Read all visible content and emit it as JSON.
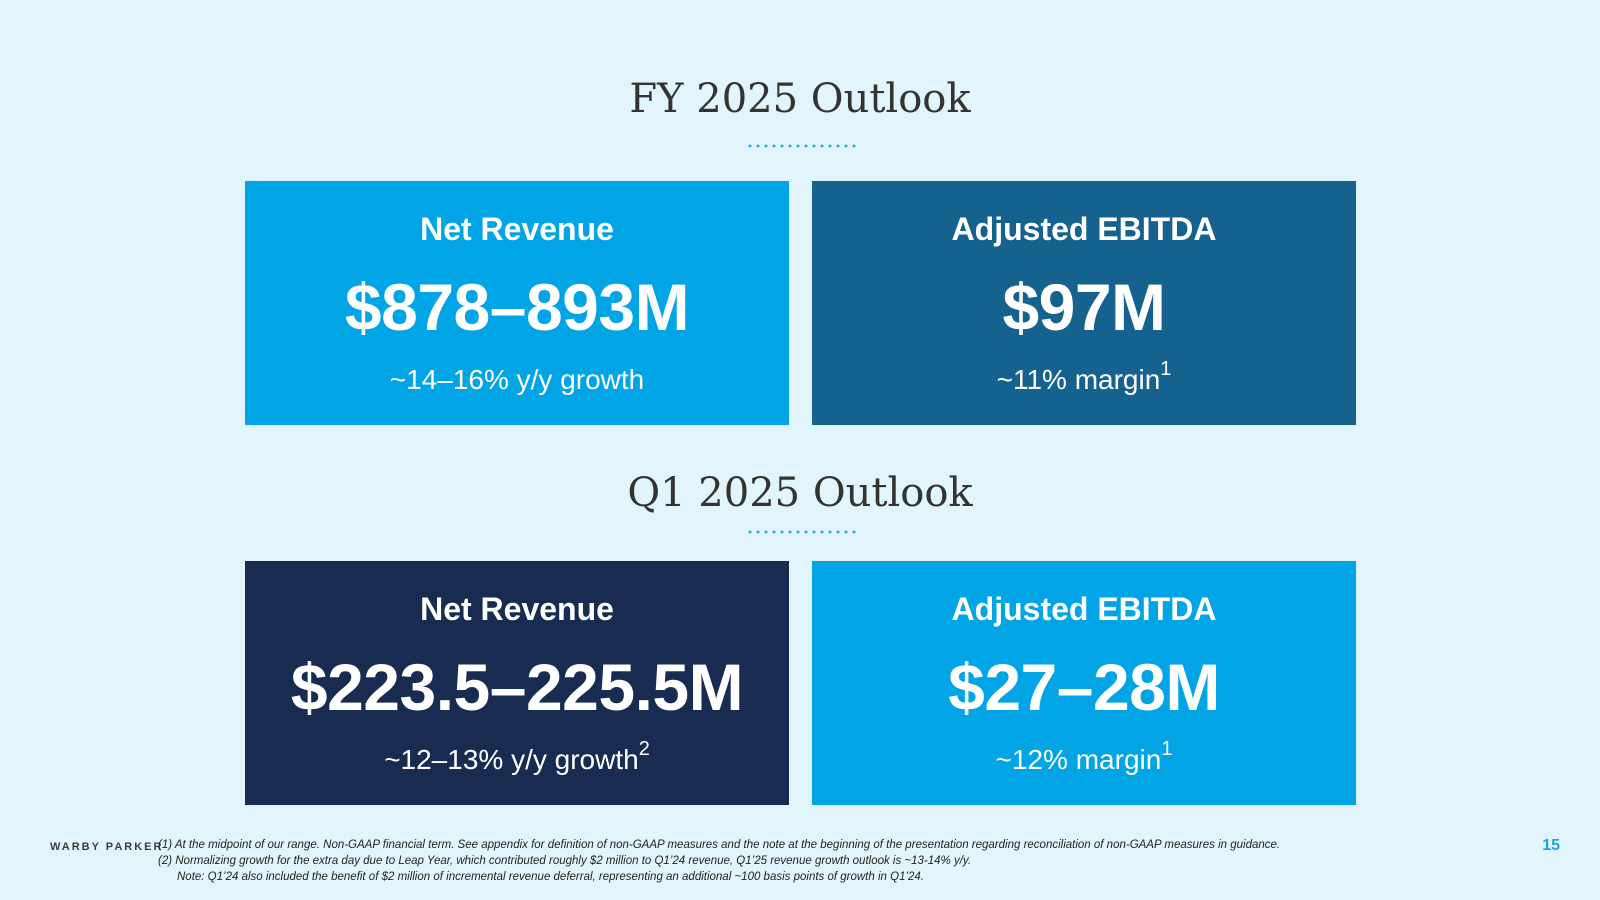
{
  "fy": {
    "title": "FY 2025 Outlook",
    "revenue": {
      "label": "Net Revenue",
      "value": "$878–893M",
      "sub": "~14–16% y/y growth"
    },
    "ebitda": {
      "label": "Adjusted EBITDA",
      "value": "$97M",
      "sub": "~11% margin",
      "sup": "1"
    }
  },
  "q1": {
    "title": "Q1 2025 Outlook",
    "revenue": {
      "label": "Net Revenue",
      "value": "$223.5–225.5M",
      "sub": "~12–13% y/y growth",
      "sup": "2"
    },
    "ebitda": {
      "label": "Adjusted EBITDA",
      "value": "$27–28M",
      "sub": "~12% margin",
      "sup": "1"
    }
  },
  "footer": {
    "brand": "WARBY PARKER",
    "notes": [
      "(1) At the midpoint of our range. Non-GAAP financial term. See appendix for definition of non-GAAP measures and the note at the beginning of the presentation regarding reconciliation of non-GAAP measures in guidance.",
      "(2) Normalizing growth for the extra day due to Leap Year, which contributed roughly $2 million to Q1’24 revenue, Q1’25 revenue growth outlook is ~13-14% y/y.",
      "Note: Q1’24 also included the benefit of $2 million of incremental revenue deferral, representing an additional ~100 basis points of growth in Q1’24."
    ],
    "page_number": "15"
  },
  "colors": {
    "background": "#e3f5fc",
    "bright_blue": "#01a4e4",
    "steel_blue": "#16628f",
    "navy": "#182b50",
    "accent": "#21a3dc"
  }
}
